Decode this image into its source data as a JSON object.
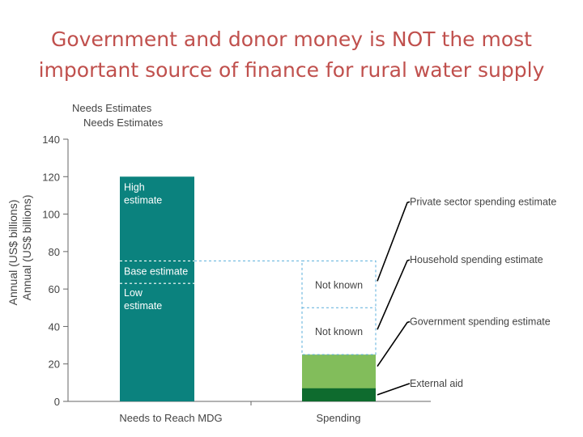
{
  "slide": {
    "title_line1": "Government and donor money is NOT the most",
    "title_line2": "important source of finance for rural water supply"
  },
  "chart_data": {
    "type": "bar",
    "stacked": true,
    "title": "Needs Estimates",
    "title_shadow": "Needs Estimates",
    "ylabel": "Annual (US$ billions)",
    "ylabel_shadow": "Annual (US$ billions)",
    "ylim": [
      0,
      140
    ],
    "yticks": [
      0,
      20,
      40,
      60,
      80,
      100,
      120,
      140
    ],
    "grid": false,
    "categories": [
      "Needs to Reach MDG",
      "Spending"
    ],
    "colors": {
      "needs": "#0b827e",
      "government": "#82bd5b",
      "external": "#0e6b2e",
      "dashed": "#5aaedb",
      "leader": "#000000",
      "axis": "#666666"
    },
    "needs_bar": {
      "value": 120,
      "base_estimate": 75,
      "low_estimate": 63,
      "labels": {
        "high": [
          "High",
          "estimate"
        ],
        "base": "Base estimate",
        "low": [
          "Low",
          "estimate"
        ]
      }
    },
    "spending_bar": {
      "external_aid": 7,
      "government_spending": 25,
      "household_top": 50,
      "private_top": 75,
      "not_known_1": "Not known",
      "not_known_2": "Not known"
    },
    "annotations": [
      {
        "label": "Private sector spending estimate",
        "y": 107
      },
      {
        "label": "Household spending estimate",
        "y": 76
      },
      {
        "label": "Government spending estimate",
        "y": 43
      },
      {
        "label": "External aid",
        "y": 10
      }
    ]
  }
}
